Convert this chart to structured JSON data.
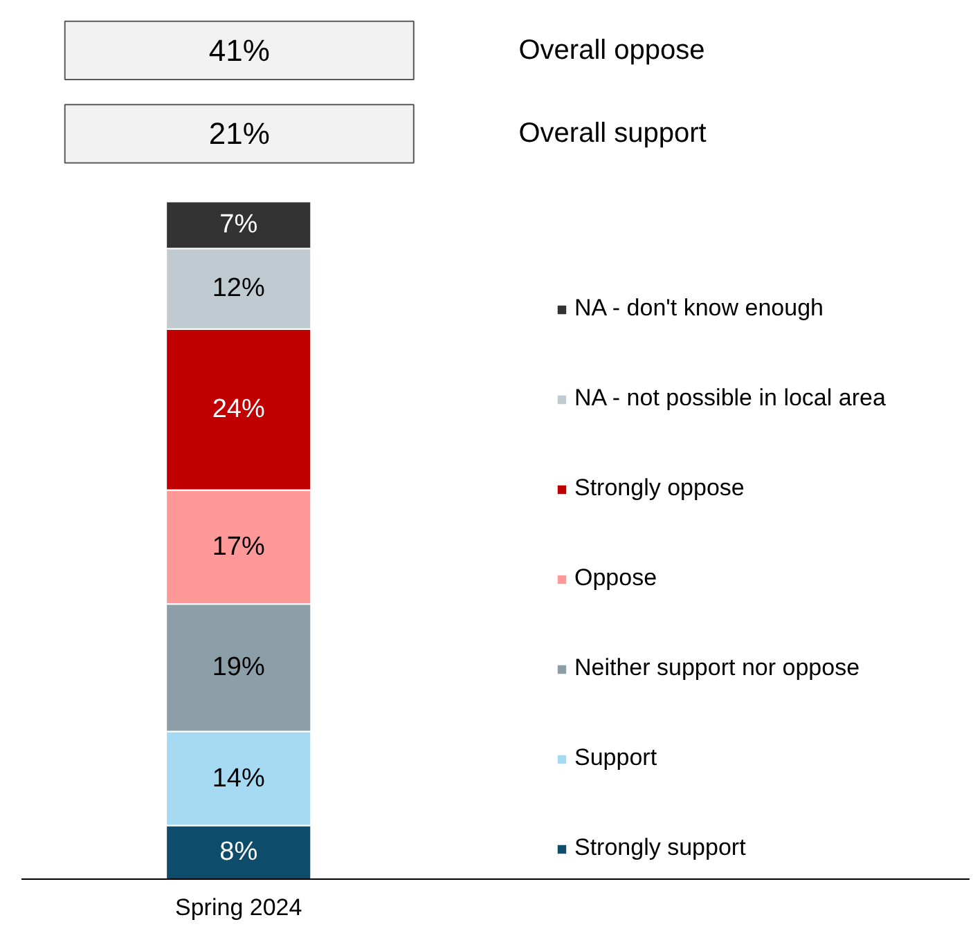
{
  "chart_data": {
    "type": "bar",
    "stacked": true,
    "legend": "right",
    "categories": [
      "Spring 2024"
    ],
    "annotations": [
      "41%",
      "Overall oppose",
      "21%",
      "Overall support"
    ],
    "series": [
      {
        "name": "Strongly support",
        "color": "#0e4c6b",
        "values": [
          8
        ],
        "value_labels": [
          "8%"
        ]
      },
      {
        "name": "Support",
        "color": "#a6daf2",
        "values": [
          14
        ],
        "value_labels": [
          "14%"
        ]
      },
      {
        "name": "Neither support nor oppose",
        "color": "#8c9ea8",
        "values": [
          19
        ],
        "value_labels": [
          "19%"
        ]
      },
      {
        "name": "Oppose",
        "color": "#ff9999",
        "values": [
          17
        ],
        "value_labels": [
          "17%"
        ]
      },
      {
        "name": "Strongly oppose",
        "color": "#c00000",
        "values": [
          24
        ],
        "value_labels": [
          "24%"
        ]
      },
      {
        "name": "NA - not possible in local area",
        "color": "#bfcbd0",
        "values": [
          12
        ],
        "value_labels": [
          "12%"
        ]
      },
      {
        "name": "NA - don't know enough",
        "color": "#333333",
        "values": [
          7
        ],
        "value_labels": [
          "7%"
        ]
      }
    ]
  }
}
